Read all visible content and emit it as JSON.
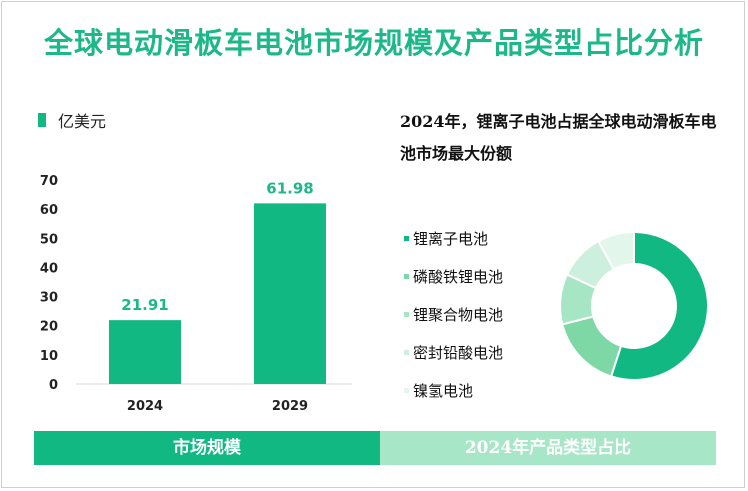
{
  "title": "全球电动滑板车电池市场规模及产品类型占比分析",
  "unit_label": "亿美元",
  "pie_heading": "2024年，锂离子电池占据全球电动滑板车电池市场最大份额",
  "footer": {
    "left": "市场规模",
    "right": "2024年产品类型占比"
  },
  "colors": {
    "accent": "#12b882",
    "title": "#1db88a",
    "footer_right": "#a8e6c8"
  },
  "chart_data": [
    {
      "type": "bar",
      "categories": [
        "2024",
        "2029"
      ],
      "values": [
        21.91,
        61.98
      ],
      "value_labels": [
        "21.91",
        "61.98"
      ],
      "ylim": [
        0,
        70
      ],
      "yticks": [
        0,
        10,
        20,
        30,
        40,
        50,
        60,
        70
      ],
      "unit": "亿美元",
      "grid": false,
      "bar_color": "#12b882",
      "label_color": "#1db88a"
    },
    {
      "type": "pie",
      "donut": true,
      "labels": [
        "锂离子电池",
        "磷酸铁锂电池",
        "锂聚合物电池",
        "密封铅酸电池",
        "镍氢电池"
      ],
      "values": [
        55,
        16,
        11,
        10,
        8
      ],
      "colors": [
        "#12b882",
        "#7dd8a6",
        "#a7e6c4",
        "#ccf0dd",
        "#e3f6ec"
      ],
      "legend_position": "left"
    }
  ]
}
